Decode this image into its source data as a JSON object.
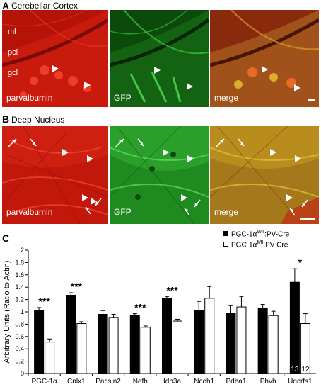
{
  "panels": {
    "a": {
      "letter": "A",
      "title": "Cerebellar Cortex",
      "layers": [
        "ml",
        "pcl",
        "gcl"
      ],
      "images": [
        "parvalbumin",
        "GFP",
        "merge"
      ]
    },
    "b": {
      "letter": "B",
      "title": "Deep Nucleus",
      "images": [
        "parvalbumin",
        "GFP",
        "merge"
      ]
    },
    "c": {
      "letter": "C"
    }
  },
  "colors": {
    "red": "#d81c10",
    "green": "#22b622",
    "merge": "#b07a1c",
    "wt_bar": "#000000",
    "ko_bar": "#ffffff"
  },
  "chart_data": {
    "type": "bar",
    "categories": [
      "PGC-1α",
      "Cplx1",
      "Pacsin2",
      "Nefh",
      "Idh3a",
      "Nceh1",
      "Pdha1",
      "Phyh",
      "Uqcrfs1"
    ],
    "ylabel": "Arbitrary Units (Ratio to Actin)",
    "ylim": [
      0,
      2
    ],
    "yticks": [
      "0",
      "0.2",
      "0.4",
      "0.6",
      "0.8",
      "1",
      "1.2",
      "1.4",
      "1.6",
      "1.8",
      "2"
    ],
    "grid": false,
    "legend_position": "top-right",
    "series": [
      {
        "name": "PGC-1α^WT:PV-Cre",
        "legend_main": "PGC-1α",
        "legend_sup": "WT",
        "legend_rest": ":PV-Cre",
        "values": [
          1.02,
          1.27,
          0.96,
          0.94,
          1.22,
          1.02,
          0.98,
          1.06,
          1.48
        ],
        "errors": [
          0.05,
          0.04,
          0.06,
          0.03,
          0.03,
          0.15,
          0.12,
          0.06,
          0.22
        ]
      },
      {
        "name": "PGC-1α^fl/fl:PV-Cre",
        "legend_main": "PGC-1α",
        "legend_sup": "fl/fl",
        "legend_rest": ":PV-Cre",
        "values": [
          0.51,
          0.81,
          0.91,
          0.75,
          0.85,
          1.22,
          1.08,
          0.94,
          0.81
        ],
        "errors": [
          0.05,
          0.03,
          0.05,
          0.02,
          0.03,
          0.19,
          0.17,
          0.07,
          0.16
        ]
      }
    ],
    "significance": [
      "***",
      "***",
      "",
      "***",
      "***",
      "",
      "",
      "",
      "*"
    ],
    "n_labels": [
      "13",
      "12"
    ]
  }
}
